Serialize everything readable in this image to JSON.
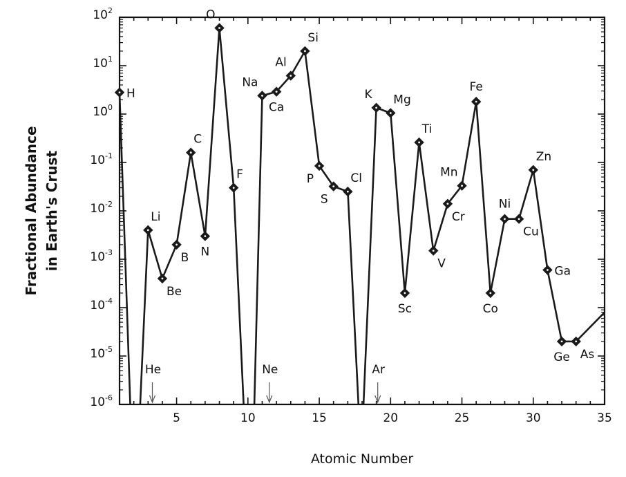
{
  "chart_data": {
    "type": "line",
    "xlabel": "Atomic Number",
    "ylabel": [
      "Fractional Abundance",
      "in Earth's Crust"
    ],
    "xlim": [
      1,
      35
    ],
    "ylim": [
      1e-06,
      100
    ],
    "yscale": "log",
    "xticks": [
      5,
      10,
      15,
      20,
      25,
      30,
      35
    ],
    "yticks": [
      {
        "value": 1e-06,
        "base": "10",
        "exp": "-6"
      },
      {
        "value": 1e-05,
        "base": "10",
        "exp": "-5"
      },
      {
        "value": 0.0001,
        "base": "10",
        "exp": "-4"
      },
      {
        "value": 0.001,
        "base": "10",
        "exp": "-3"
      },
      {
        "value": 0.01,
        "base": "10",
        "exp": "-2"
      },
      {
        "value": 0.1,
        "base": "10",
        "exp": "-1"
      },
      {
        "value": 1,
        "base": "10",
        "exp": "0"
      },
      {
        "value": 10,
        "base": "10",
        "exp": "1"
      },
      {
        "value": 100,
        "base": "10",
        "exp": "2"
      }
    ],
    "points": [
      {
        "z": 1,
        "symbol": "H",
        "value": 2.8,
        "label_side": "right"
      },
      {
        "z": 3,
        "symbol": "Li",
        "value": 0.004,
        "label_side": "up-right"
      },
      {
        "z": 4,
        "symbol": "Be",
        "value": 0.0004,
        "label_side": "down-right"
      },
      {
        "z": 5,
        "symbol": "B",
        "value": 0.002,
        "label_side": "down-right"
      },
      {
        "z": 6,
        "symbol": "C",
        "value": 0.16,
        "label_side": "up-right"
      },
      {
        "z": 7,
        "symbol": "N",
        "value": 0.003,
        "label_side": "down"
      },
      {
        "z": 8,
        "symbol": "O",
        "value": 60,
        "label_side": "up-left"
      },
      {
        "z": 9,
        "symbol": "F",
        "value": 0.03,
        "label_side": "up-right"
      },
      {
        "z": 11,
        "symbol": "Na",
        "value": 2.4,
        "label_side": "up-left"
      },
      {
        "z": 12,
        "symbol": "Ca",
        "value": 2.9,
        "label_side": "down"
      },
      {
        "z": 13,
        "symbol": "Al",
        "value": 6.2,
        "label_side": "up-left"
      },
      {
        "z": 14,
        "symbol": "Si",
        "value": 20,
        "label_side": "up-right"
      },
      {
        "z": 15,
        "symbol": "P",
        "value": 0.085,
        "label_side": "down-left"
      },
      {
        "z": 16,
        "symbol": "S",
        "value": 0.032,
        "label_side": "down-left"
      },
      {
        "z": 17,
        "symbol": "Cl",
        "value": 0.025,
        "label_side": "up-right"
      },
      {
        "z": 19,
        "symbol": "K",
        "value": 1.35,
        "label_side": "up-left"
      },
      {
        "z": 20,
        "symbol": "Mg",
        "value": 1.05,
        "label_side": "up-right"
      },
      {
        "z": 21,
        "symbol": "Sc",
        "value": 0.0002,
        "label_side": "down"
      },
      {
        "z": 22,
        "symbol": "Ti",
        "value": 0.26,
        "label_side": "up-right"
      },
      {
        "z": 23,
        "symbol": "V",
        "value": 0.0015,
        "label_side": "down-right"
      },
      {
        "z": 24,
        "symbol": "Cr",
        "value": 0.014,
        "label_side": "down-right"
      },
      {
        "z": 25,
        "symbol": "Mn",
        "value": 0.033,
        "label_side": "up-left"
      },
      {
        "z": 26,
        "symbol": "Fe",
        "value": 1.8,
        "label_side": "up"
      },
      {
        "z": 27,
        "symbol": "Co",
        "value": 0.0002,
        "label_side": "down"
      },
      {
        "z": 28,
        "symbol": "Ni",
        "value": 0.0068,
        "label_side": "up"
      },
      {
        "z": 29,
        "symbol": "Cu",
        "value": 0.0068,
        "label_side": "down-right"
      },
      {
        "z": 30,
        "symbol": "Zn",
        "value": 0.07,
        "label_side": "up-right"
      },
      {
        "z": 31,
        "symbol": "Ga",
        "value": 0.0006,
        "label_side": "right"
      },
      {
        "z": 32,
        "symbol": "Ge",
        "value": 2e-05,
        "label_side": "down"
      },
      {
        "z": 33,
        "symbol": "As",
        "value": 2e-05,
        "label_side": "down-right"
      }
    ],
    "line_path": [
      {
        "z": 1,
        "value": 2.8
      },
      {
        "z": 1.75,
        "value": 1e-06,
        "break": true
      },
      {
        "z": 2.45,
        "value": 1e-06,
        "resume": true
      },
      {
        "z": 3,
        "value": 0.004
      },
      {
        "z": 4,
        "value": 0.0004
      },
      {
        "z": 5,
        "value": 0.002
      },
      {
        "z": 6,
        "value": 0.16
      },
      {
        "z": 7,
        "value": 0.003
      },
      {
        "z": 8,
        "value": 60
      },
      {
        "z": 9,
        "value": 0.03
      },
      {
        "z": 9.7,
        "value": 1e-06,
        "break": true
      },
      {
        "z": 10.45,
        "value": 1e-06,
        "resume": true
      },
      {
        "z": 11,
        "value": 2.4
      },
      {
        "z": 12,
        "value": 2.9
      },
      {
        "z": 13,
        "value": 6.2
      },
      {
        "z": 14,
        "value": 20
      },
      {
        "z": 15,
        "value": 0.085
      },
      {
        "z": 16,
        "value": 0.032
      },
      {
        "z": 17,
        "value": 0.025
      },
      {
        "z": 17.75,
        "value": 1e-06,
        "break": true
      },
      {
        "z": 18.1,
        "value": 1e-06,
        "resume": true
      },
      {
        "z": 19,
        "value": 1.35
      },
      {
        "z": 20,
        "value": 1.05
      },
      {
        "z": 21,
        "value": 0.0002
      },
      {
        "z": 22,
        "value": 0.26
      },
      {
        "z": 23,
        "value": 0.0015
      },
      {
        "z": 24,
        "value": 0.014
      },
      {
        "z": 25,
        "value": 0.033
      },
      {
        "z": 26,
        "value": 1.8
      },
      {
        "z": 27,
        "value": 0.0002
      },
      {
        "z": 28,
        "value": 0.0068
      },
      {
        "z": 29,
        "value": 0.0068
      },
      {
        "z": 30,
        "value": 0.07
      },
      {
        "z": 31,
        "value": 0.0006
      },
      {
        "z": 32,
        "value": 2e-05
      },
      {
        "z": 33,
        "value": 2e-05
      },
      {
        "z": 35,
        "value": 8e-05
      }
    ],
    "noble_gases": [
      {
        "symbol": "He",
        "z": 3.3
      },
      {
        "symbol": "Ne",
        "z": 11.5
      },
      {
        "symbol": "Ar",
        "z": 19.1
      }
    ],
    "grid": false,
    "legend": "none",
    "colors": {
      "line": "#1a1a1a",
      "marker": "#1a1a1a",
      "arrow": "#555555"
    }
  }
}
